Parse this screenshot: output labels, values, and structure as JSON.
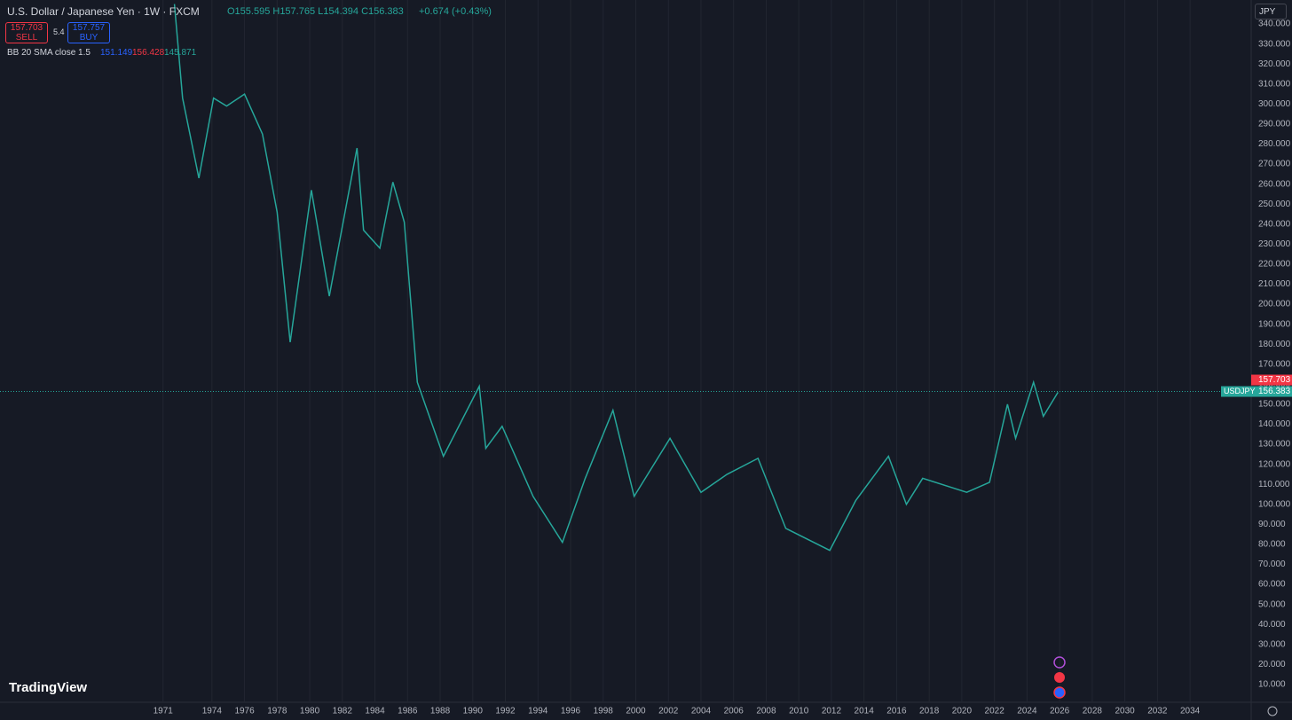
{
  "header": {
    "symbol": "U.S. Dollar / Japanese Yen · 1W · FXCM",
    "ohlc": "O155.595 H157.765 L154.394 C156.383",
    "change": "+0.674 (+0.43%)",
    "sell_price": "157.703",
    "sell": "SELL",
    "spread": "5.4",
    "buy_price": "157.757",
    "buy": "BUY",
    "indicator": "BB 20 SMA close 1.5",
    "bb_values": [
      "151.149",
      "156.428",
      "145.871"
    ],
    "currency": "JPY",
    "brand": "TradingView"
  },
  "chart_data": {
    "type": "line",
    "x": [
      1971.7,
      1972.2,
      1973.2,
      1974.1,
      1974.9,
      1976.0,
      1977.1,
      1978.0,
      1978.8,
      1980.1,
      1981.2,
      1982.9,
      1983.3,
      1984.3,
      1985.1,
      1985.8,
      1986.6,
      1988.2,
      1990.4,
      1990.8,
      1991.8,
      1993.7,
      1995.5,
      1996.9,
      1998.6,
      1999.9,
      2002.1,
      2004.0,
      2005.6,
      2007.5,
      2009.2,
      2011.9,
      2013.5,
      2015.5,
      2016.6,
      2017.6,
      2020.3,
      2021.7,
      2022.8,
      2023.3,
      2024.4,
      2025.0,
      2025.9
    ],
    "series": [
      {
        "name": "USDJPY",
        "color": "#26a69a",
        "values": [
          350,
          303,
          263,
          303,
          299,
          305,
          285,
          246,
          181,
          257,
          204,
          278,
          237,
          228,
          261,
          241,
          161,
          124,
          159,
          128,
          139,
          104,
          81,
          113,
          147,
          104,
          133,
          106,
          115,
          123,
          88,
          77,
          102,
          124,
          100,
          113,
          106,
          111,
          150,
          133,
          161,
          144,
          156
        ]
      }
    ],
    "last_price": 156.383,
    "sell_price": 157.703,
    "xlim": [
      1961,
      2037.75
    ],
    "ylim": [
      1.1,
      352
    ],
    "xticks": [
      1971,
      1974,
      1976,
      1978,
      1980,
      1982,
      1984,
      1986,
      1988,
      1990,
      1992,
      1994,
      1996,
      1998,
      2000,
      2002,
      2004,
      2006,
      2008,
      2010,
      2012,
      2014,
      2016,
      2018,
      2020,
      2022,
      2024,
      2026,
      2028,
      2030,
      2032,
      2034
    ],
    "yticks": [
      {
        "value": 10,
        "label": "10.000"
      },
      {
        "value": 20,
        "label": "20.000"
      },
      {
        "value": 30,
        "label": "30.000"
      },
      {
        "value": 40,
        "label": "40.000"
      },
      {
        "value": 50,
        "label": "50.000"
      },
      {
        "value": 60,
        "label": "60.000"
      },
      {
        "value": 70,
        "label": "70.000"
      },
      {
        "value": 80,
        "label": "80.000"
      },
      {
        "value": 90,
        "label": "90.000"
      },
      {
        "value": 100,
        "label": "100.000"
      },
      {
        "value": 110,
        "label": "110.000"
      },
      {
        "value": 120,
        "label": "120.000"
      },
      {
        "value": 130,
        "label": "130.000"
      },
      {
        "value": 140,
        "label": "140.000"
      },
      {
        "value": 150,
        "label": "150.000"
      },
      {
        "value": 160,
        "label": "160.000"
      },
      {
        "value": 170,
        "label": "170.000"
      },
      {
        "value": 180,
        "label": "180.000"
      },
      {
        "value": 190,
        "label": "190.000"
      },
      {
        "value": 200,
        "label": "200.000"
      },
      {
        "value": 210,
        "label": "210.000"
      },
      {
        "value": 220,
        "label": "220.000"
      },
      {
        "value": 230,
        "label": "230.000"
      },
      {
        "value": 240,
        "label": "240.000"
      },
      {
        "value": 250,
        "label": "250.000"
      },
      {
        "value": 260,
        "label": "260.000"
      },
      {
        "value": 270,
        "label": "270.000"
      },
      {
        "value": 280,
        "label": "280.000"
      },
      {
        "value": 290,
        "label": "290.000"
      },
      {
        "value": 300,
        "label": "300.000"
      },
      {
        "value": 310,
        "label": "310.000"
      },
      {
        "value": 320,
        "label": "320.000"
      },
      {
        "value": 330,
        "label": "330.000"
      },
      {
        "value": 340,
        "label": "340.000"
      }
    ],
    "grid": true
  }
}
